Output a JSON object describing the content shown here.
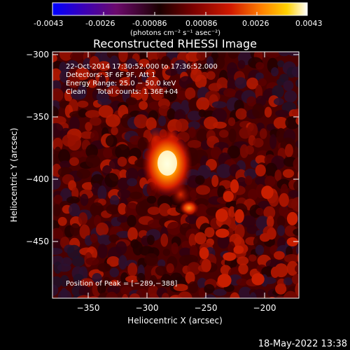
{
  "colorbar": {
    "ticks": [
      "-0.0043",
      "-0.0026",
      "-0.00086",
      "0.00086",
      "0.0026",
      "0.0043"
    ],
    "units_label": "(photons cm⁻² s⁻¹ asec⁻²)",
    "colors": [
      "#0000ff",
      "#3a00b8",
      "#6c0a6c",
      "#000000",
      "#7a0000",
      "#d11a00",
      "#ff8000",
      "#ffd100",
      "#ffffff"
    ]
  },
  "plot": {
    "title": "Reconstructed RHESSI Image",
    "xlabel": "Heliocentric X (arcsec)",
    "ylabel": "Heliocentric Y (arcsec)",
    "xticks": [
      "−350",
      "−300",
      "−250",
      "−200"
    ],
    "yticks": [
      "−300",
      "−350",
      "−400",
      "−450"
    ]
  },
  "annotation": {
    "line1": "22-Oct-2014 17:30:52.000 to 17:36:52.000",
    "line2": "Detectors: 3F 6F 9F, Att 1",
    "line3": "Energy Range: 25.0 − 50.0 keV",
    "line4": "Clean     Total counts: 1.36E+04",
    "peak": "Position of Peak = [−289,−388]"
  },
  "timestamp": "18-May-2022 13:38",
  "image": {
    "peak_position": [
      -289,
      -388
    ],
    "secondary_source": [
      -273,
      -424
    ]
  }
}
